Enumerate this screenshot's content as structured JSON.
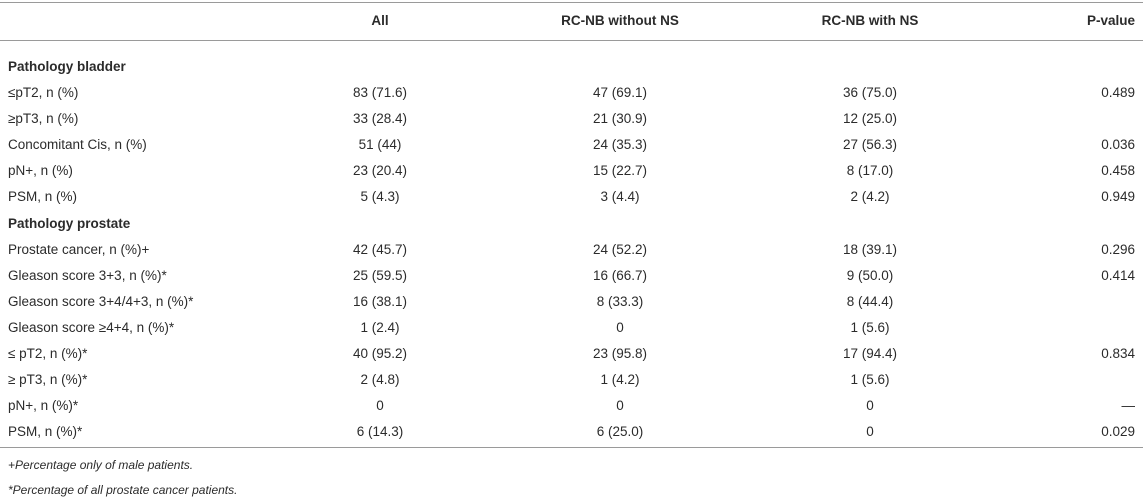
{
  "table": {
    "columns": [
      "All",
      "RC-NB without NS",
      "RC-NB with NS",
      "P-value"
    ],
    "sections": [
      {
        "title": "Pathology bladder",
        "rows": [
          [
            "≤pT2, n (%)",
            "83 (71.6)",
            "47 (69.1)",
            "36 (75.0)",
            "0.489"
          ],
          [
            "≥pT3, n (%)",
            "33 (28.4)",
            "21 (30.9)",
            "12 (25.0)"
          ],
          [
            "Concomitant Cis, n (%)",
            "51 (44)",
            "24 (35.3)",
            "27 (56.3)",
            "0.036"
          ],
          [
            "pN+, n (%)",
            "23 (20.4)",
            "15 (22.7)",
            "8 (17.0)",
            "0.458"
          ],
          [
            "PSM, n (%)",
            "5 (4.3)",
            "3 (4.4)",
            "2 (4.2)",
            "0.949"
          ]
        ]
      },
      {
        "title": "Pathology prostate",
        "rows": [
          [
            "Prostate cancer, n (%)+",
            "42 (45.7)",
            "24 (52.2)",
            "18 (39.1)",
            "0.296"
          ],
          [
            "Gleason score 3+3, n (%)*",
            "25 (59.5)",
            "16 (66.7)",
            "9 (50.0)",
            "0.414"
          ],
          [
            "Gleason score 3+4/4+3, n (%)*",
            "16 (38.1)",
            "8 (33.3)",
            "8 (44.4)"
          ],
          [
            "Gleason score ≥4+4, n (%)*",
            "1 (2.4)",
            "0",
            "1 (5.6)"
          ],
          [
            "≤ pT2, n (%)*",
            "40 (95.2)",
            "23 (95.8)",
            "17 (94.4)",
            "0.834"
          ],
          [
            "≥ pT3, n (%)*",
            "2 (4.8)",
            "1 (4.2)",
            "1 (5.6)"
          ],
          [
            "pN+, n (%)*",
            "0",
            "0",
            "0",
            "—"
          ],
          [
            "PSM, n (%)*",
            "6 (14.3)",
            "6 (25.0)",
            "0",
            "0.029"
          ]
        ]
      }
    ],
    "footnotes": [
      "+Percentage only of male patients.",
      "*Percentage of all prostate cancer patients."
    ]
  }
}
